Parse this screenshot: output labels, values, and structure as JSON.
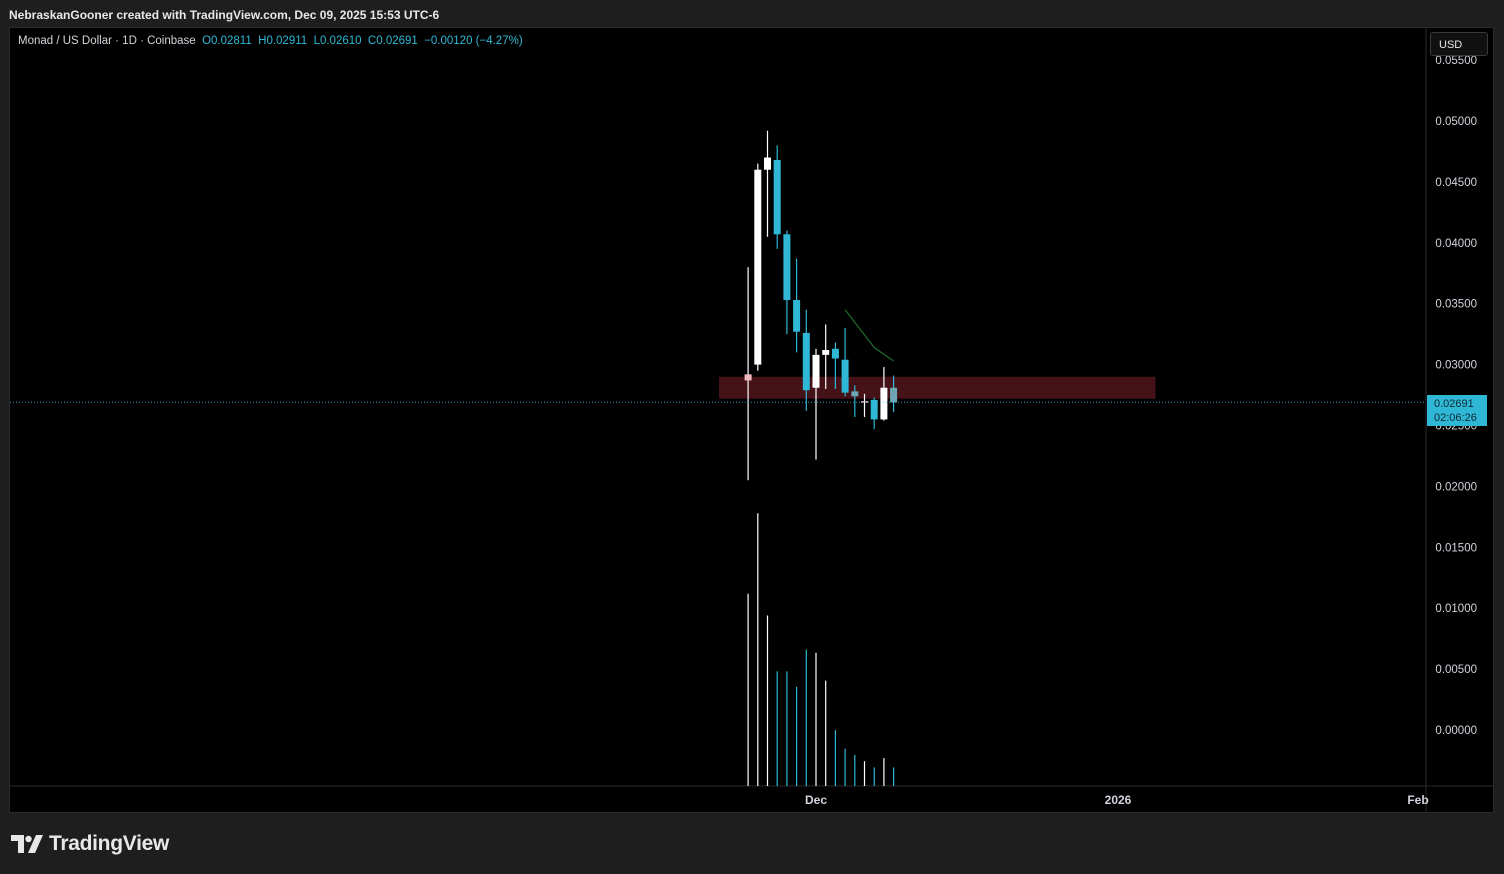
{
  "header": {
    "credit": "NebraskanGooner created with TradingView.com, Dec 09, 2025 15:53 UTC-6"
  },
  "legend": {
    "symbol": "Monad / US Dollar · 1D · Coinbase",
    "open": "O0.02811",
    "high": "H0.02911",
    "low": "L0.02610",
    "close": "C0.02691",
    "change": "−0.00120 (−4.27%)"
  },
  "currency_button": "USD",
  "last_price": {
    "value": "0.02691",
    "countdown": "02:06:26"
  },
  "footer": {
    "logo_text": "TradingView"
  },
  "colors": {
    "up": "#ffffff",
    "down": "#2fb8d6",
    "zone": "#4a1319",
    "background": "#000000"
  },
  "chart_data": {
    "type": "candlestick",
    "y_ticks": [
      "0.05500",
      "0.05000",
      "0.04500",
      "0.04000",
      "0.03500",
      "0.03000",
      "0.02500",
      "0.02000",
      "0.01500",
      "0.01000",
      "0.00500",
      "0.00000"
    ],
    "x_ticks": [
      "Dec",
      "2026",
      "Feb"
    ],
    "ylim": [
      -0.0045,
      0.0555
    ],
    "x_dates": [
      "2025-11-24",
      "2025-11-25",
      "2025-11-26",
      "2025-11-27",
      "2025-11-28",
      "2025-11-29",
      "2025-11-30",
      "2025-12-01",
      "2025-12-02",
      "2025-12-03",
      "2025-12-04",
      "2025-12-05",
      "2025-12-06",
      "2025-12-07",
      "2025-12-08",
      "2025-12-09"
    ],
    "candles": [
      {
        "o": 0.0287,
        "h": 0.038,
        "l": 0.0205,
        "c": 0.0292
      },
      {
        "o": 0.03,
        "h": 0.0465,
        "l": 0.0295,
        "c": 0.046
      },
      {
        "o": 0.046,
        "h": 0.0492,
        "l": 0.0405,
        "c": 0.047
      },
      {
        "o": 0.0468,
        "h": 0.048,
        "l": 0.0395,
        "c": 0.0407
      },
      {
        "o": 0.0407,
        "h": 0.041,
        "l": 0.0325,
        "c": 0.0353
      },
      {
        "o": 0.0353,
        "h": 0.0387,
        "l": 0.031,
        "c": 0.0327
      },
      {
        "o": 0.0326,
        "h": 0.0345,
        "l": 0.0262,
        "c": 0.0279
      },
      {
        "o": 0.0281,
        "h": 0.0313,
        "l": 0.0222,
        "c": 0.0308
      },
      {
        "o": 0.0308,
        "h": 0.0333,
        "l": 0.028,
        "c": 0.0312
      },
      {
        "o": 0.0313,
        "h": 0.0318,
        "l": 0.028,
        "c": 0.0305
      },
      {
        "o": 0.0304,
        "h": 0.033,
        "l": 0.0274,
        "c": 0.0277
      },
      {
        "o": 0.0278,
        "h": 0.0283,
        "l": 0.0257,
        "c": 0.0274
      },
      {
        "o": 0.0269,
        "h": 0.0276,
        "l": 0.0257,
        "c": 0.027
      },
      {
        "o": 0.0271,
        "h": 0.0273,
        "l": 0.0247,
        "c": 0.0255
      },
      {
        "o": 0.0255,
        "h": 0.0298,
        "l": 0.0254,
        "c": 0.0281
      },
      {
        "o": 0.0281,
        "h": 0.0291,
        "l": 0.0261,
        "c": 0.0269
      }
    ],
    "volume_relative": [
      0.62,
      0.88,
      0.55,
      0.37,
      0.37,
      0.32,
      0.44,
      0.43,
      0.34,
      0.18,
      0.12,
      0.1,
      0.08,
      0.06,
      0.09,
      0.06
    ],
    "zone": {
      "low": 0.0272,
      "high": 0.029,
      "from": "2025-11-21",
      "to": "2026-01-05"
    },
    "trend_line": [
      {
        "x": "2025-12-04",
        "y": 0.0345
      },
      {
        "x": "2025-12-07",
        "y": 0.0314
      },
      {
        "x": "2025-12-09",
        "y": 0.0303
      }
    ],
    "last_price_line": 0.02691
  }
}
